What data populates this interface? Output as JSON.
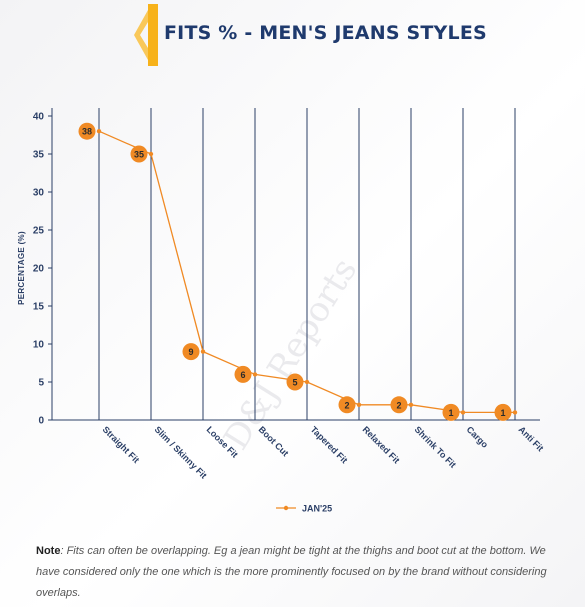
{
  "header": {
    "title": "FITS % - MEN'S JEANS STYLES",
    "accent_color": "#f7b21a"
  },
  "chart_data": {
    "type": "line",
    "title": "FITS % - MEN'S JEANS STYLES",
    "xlabel": "",
    "ylabel": "PERCENTAGE (%)",
    "ylim": [
      0,
      40
    ],
    "yticks": [
      0,
      5,
      10,
      15,
      20,
      25,
      30,
      35,
      40
    ],
    "categories": [
      "Straight Fit",
      "Slim / Skinny Fit",
      "Loose Fit",
      "Boot Cut",
      "Tapered Fit",
      "Relaxed Fit",
      "Shrink To Fit",
      "Cargo",
      "Anti Fit"
    ],
    "series": [
      {
        "name": "JAN'25",
        "values": [
          38,
          35,
          9,
          6,
          5,
          2,
          2,
          1,
          1
        ],
        "color": "#f08a24"
      }
    ],
    "grid": "vertical lines",
    "legend_position": "bottom-center",
    "watermark": "D&J Reports"
  },
  "note": {
    "label": "Note",
    "text": ": Fits can often be overlapping. Eg a jean might be tight at the thighs and boot cut at the bottom. We have considered only the one which is the more prominently focused on by the brand without considering overlaps."
  }
}
